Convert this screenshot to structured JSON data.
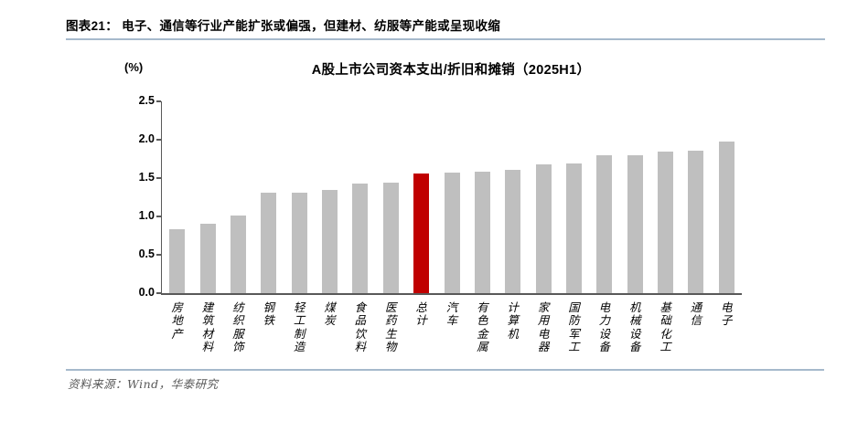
{
  "header": {
    "figure_label": "图表21：  电子、通信等行业产能扩张或偏强，但建材、纺服等产能或呈现收缩",
    "rule_color": "#a6b9cc"
  },
  "chart_data": {
    "type": "bar",
    "title": "A股上市公司资本支出/折旧和摊销（2025H1）",
    "unit_label": "(%)",
    "categories": [
      "房地产",
      "建筑材料",
      "纺织服饰",
      "钢铁",
      "轻工制造",
      "煤炭",
      "食品饮料",
      "医药生物",
      "总计",
      "汽车",
      "有色金属",
      "计算机",
      "家用电器",
      "国防军工",
      "电力设备",
      "机械设备",
      "基础化工",
      "通信",
      "电子"
    ],
    "values": [
      0.83,
      0.91,
      1.01,
      1.31,
      1.31,
      1.34,
      1.43,
      1.44,
      1.56,
      1.57,
      1.58,
      1.61,
      1.68,
      1.69,
      1.8,
      1.8,
      1.84,
      1.86,
      1.98
    ],
    "highlight_category": "总计",
    "bar_color": "#bfbfbf",
    "highlight_color": "#c00000",
    "axis_color": "#595959",
    "ylim": [
      0,
      2.5
    ],
    "yticks": [
      0.0,
      0.5,
      1.0,
      1.5,
      2.0,
      2.5
    ],
    "grid": false,
    "legend": "none",
    "xlabel": "",
    "ylabel": "(%)"
  },
  "footer": {
    "source_text": "资料来源：Wind，华泰研究",
    "rule_color": "#a6b9cc"
  }
}
